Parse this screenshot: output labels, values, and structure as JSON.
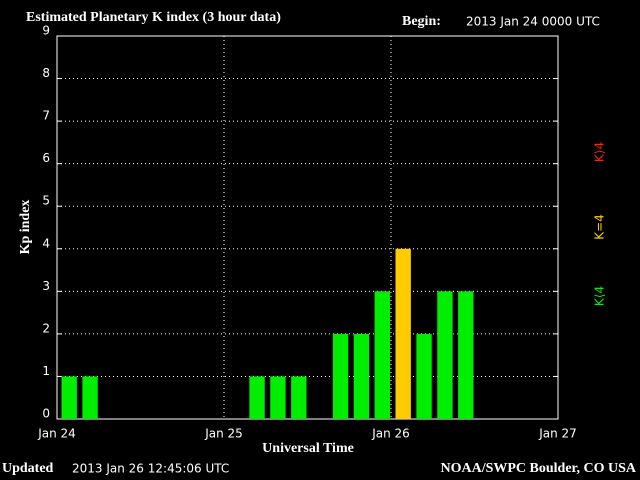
{
  "chart_data": {
    "type": "bar",
    "title": "Estimated Planetary K index (3 hour data)",
    "begin_label": "Begin:",
    "begin": "2013 Jan 24 0000 UTC",
    "ylabel": "Kp index",
    "xlabel": "Universal Time",
    "updated_label": "Updated",
    "updated": "2013 Jan 26 12:45:06 UTC",
    "source": "NOAA/SWPC Boulder, CO USA",
    "categories": [
      null,
      null,
      null,
      null,
      null,
      null,
      null,
      null,
      null,
      null,
      null,
      null,
      null,
      null,
      null,
      null,
      null,
      null,
      null,
      null,
      null,
      null,
      null,
      null
    ],
    "values": [
      1,
      1,
      null,
      null,
      null,
      null,
      null,
      null,
      null,
      1,
      1,
      1,
      null,
      2,
      2,
      3,
      4,
      2,
      3,
      3,
      null,
      null,
      null,
      null
    ],
    "bar_colors": [
      "#00ee00",
      "#00ee00",
      null,
      null,
      null,
      null,
      null,
      null,
      null,
      "#00ee00",
      "#00ee00",
      "#00ee00",
      null,
      "#00ee00",
      "#00ee00",
      "#00ee00",
      "#ffcc00",
      "#00ee00",
      "#00ee00",
      "#00ee00",
      null,
      null,
      null,
      null
    ],
    "xlabels": [
      "Jan 24",
      "Jan 25",
      "Jan 26",
      "Jan 27"
    ],
    "ylim": [
      0,
      9
    ],
    "yticks": [
      0,
      1,
      2,
      3,
      4,
      5,
      6,
      7,
      8,
      9
    ],
    "grid": true,
    "legend": [
      {
        "label": "K⟨4",
        "color": "#00ee00"
      },
      {
        "label": "K=4",
        "color": "#ffcc00"
      },
      {
        "label": "K⟩4",
        "color": "#ff2200"
      }
    ]
  }
}
